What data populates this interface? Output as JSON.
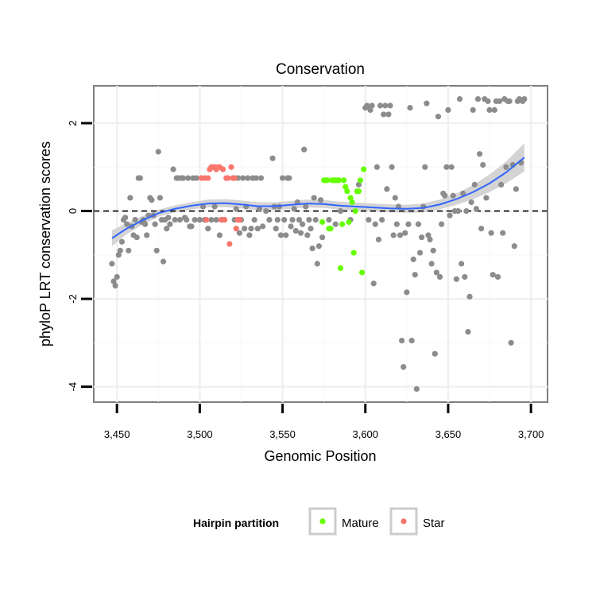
{
  "chart_data": {
    "type": "scatter",
    "title": "Conservation",
    "xlabel": "Genomic Position",
    "ylabel": "phyloP LRT conservation scores",
    "xlim": [
      3436,
      3710
    ],
    "ylim": [
      -4.35,
      2.85
    ],
    "x_ticks": [
      3450,
      3500,
      3550,
      3600,
      3650,
      3700
    ],
    "x_tick_labels": [
      "3,450",
      "3,500",
      "3,550",
      "3,600",
      "3,650",
      "3,700"
    ],
    "y_ticks": [
      -4,
      -2,
      0,
      2
    ],
    "y_tick_labels": [
      "-4",
      "-2",
      "0",
      "2"
    ],
    "grid": true,
    "reference_line": {
      "y": 0,
      "style": "dashed",
      "color": "#000000"
    },
    "legend": {
      "position": "bottom",
      "title": "Hairpin partition",
      "entries": [
        {
          "label": "Mature",
          "color": "#66ff00"
        },
        {
          "label": "Star",
          "color": "#f8766d"
        }
      ]
    },
    "colors": {
      "other": "#8c8c8c",
      "mature": "#66ff00",
      "star": "#f8766d",
      "smooth": "#3366ff",
      "ribbon": "#cccccc"
    },
    "series": [
      {
        "name": "",
        "color": "#8c8c8c",
        "points": [
          [
            3447,
            -1.2
          ],
          [
            3448,
            -1.6
          ],
          [
            3449,
            -1.7
          ],
          [
            3450,
            -1.5
          ],
          [
            3451,
            -1.0
          ],
          [
            3452,
            -0.9
          ],
          [
            3453,
            -0.7
          ],
          [
            3454,
            -0.2
          ],
          [
            3455,
            -0.15
          ],
          [
            3456,
            -0.3
          ],
          [
            3457,
            -0.9
          ],
          [
            3458,
            0.3
          ],
          [
            3459,
            -0.35
          ],
          [
            3460,
            -0.55
          ],
          [
            3461,
            -0.2
          ],
          [
            3462,
            -0.6
          ],
          [
            3463,
            0.75
          ],
          [
            3464,
            0.75
          ],
          [
            3465,
            -0.25
          ],
          [
            3466,
            -0.2
          ],
          [
            3467,
            -0.3
          ],
          [
            3468,
            -0.55
          ],
          [
            3469,
            -0.1
          ],
          [
            3470,
            0.3
          ],
          [
            3471,
            0.25
          ],
          [
            3472,
            -0.1
          ],
          [
            3473,
            -0.3
          ],
          [
            3474,
            -0.9
          ],
          [
            3475,
            1.35
          ],
          [
            3476,
            0.3
          ],
          [
            3477,
            -0.2
          ],
          [
            3478,
            -1.15
          ],
          [
            3479,
            -0.2
          ],
          [
            3480,
            -0.4
          ],
          [
            3481,
            -0.15
          ],
          [
            3482,
            -0.3
          ],
          [
            3484,
            0.95
          ],
          [
            3485,
            -0.2
          ],
          [
            3486,
            0.75
          ],
          [
            3487,
            0.75
          ],
          [
            3488,
            -0.2
          ],
          [
            3489,
            0.75
          ],
          [
            3490,
            0.75
          ],
          [
            3491,
            -0.15
          ],
          [
            3492,
            -0.2
          ],
          [
            3493,
            0.75
          ],
          [
            3494,
            -0.35
          ],
          [
            3495,
            -0.35
          ],
          [
            3496,
            0.75
          ],
          [
            3497,
            -0.2
          ],
          [
            3498,
            0.75
          ],
          [
            3500,
            -0.2
          ],
          [
            3502,
            0.1
          ],
          [
            3503,
            -0.2
          ],
          [
            3505,
            -0.4
          ],
          [
            3507,
            -0.2
          ],
          [
            3509,
            0.1
          ],
          [
            3510,
            -0.2
          ],
          [
            3512,
            -0.55
          ],
          [
            3514,
            -0.2
          ],
          [
            3520,
            0.75
          ],
          [
            3521,
            -0.2
          ],
          [
            3522,
            0.05
          ],
          [
            3523,
            0.75
          ],
          [
            3524,
            -0.5
          ],
          [
            3525,
            -0.2
          ],
          [
            3526,
            0.75
          ],
          [
            3527,
            -0.4
          ],
          [
            3528,
            0.1
          ],
          [
            3529,
            0.75
          ],
          [
            3530,
            -0.55
          ],
          [
            3531,
            -0.4
          ],
          [
            3532,
            0.75
          ],
          [
            3533,
            -0.2
          ],
          [
            3534,
            0.75
          ],
          [
            3535,
            -0.4
          ],
          [
            3536,
            0.05
          ],
          [
            3537,
            0.75
          ],
          [
            3538,
            -0.35
          ],
          [
            3540,
            0.0
          ],
          [
            3542,
            -0.2
          ],
          [
            3544,
            1.2
          ],
          [
            3545,
            0.1
          ],
          [
            3546,
            -0.4
          ],
          [
            3547,
            -0.2
          ],
          [
            3548,
            0.1
          ],
          [
            3549,
            -0.55
          ],
          [
            3550,
            0.75
          ],
          [
            3551,
            -0.2
          ],
          [
            3552,
            -0.55
          ],
          [
            3553,
            0.75
          ],
          [
            3554,
            0.75
          ],
          [
            3555,
            -0.35
          ],
          [
            3556,
            -0.2
          ],
          [
            3557,
            0.05
          ],
          [
            3558,
            -0.45
          ],
          [
            3559,
            0.2
          ],
          [
            3560,
            -0.2
          ],
          [
            3561,
            -0.5
          ],
          [
            3562,
            -0.3
          ],
          [
            3563,
            1.4
          ],
          [
            3564,
            0.1
          ],
          [
            3565,
            -0.55
          ],
          [
            3566,
            -0.2
          ],
          [
            3567,
            -0.4
          ],
          [
            3568,
            -0.85
          ],
          [
            3569,
            0.3
          ],
          [
            3570,
            -0.2
          ],
          [
            3571,
            -1.2
          ],
          [
            3572,
            -0.8
          ],
          [
            3573,
            0.25
          ],
          [
            3574,
            -0.6
          ],
          [
            3578,
            -0.2
          ],
          [
            3582,
            -0.3
          ],
          [
            3585,
            0.0
          ],
          [
            3591,
            -0.2
          ],
          [
            3596,
            0.6
          ],
          [
            3600,
            2.35
          ],
          [
            3601,
            2.4
          ],
          [
            3602,
            -0.2
          ],
          [
            3603,
            2.3
          ],
          [
            3604,
            2.4
          ],
          [
            3605,
            -1.65
          ],
          [
            3606,
            -0.3
          ],
          [
            3607,
            1.0
          ],
          [
            3608,
            -0.65
          ],
          [
            3609,
            2.4
          ],
          [
            3610,
            -0.2
          ],
          [
            3611,
            2.2
          ],
          [
            3612,
            2.4
          ],
          [
            3613,
            0.5
          ],
          [
            3614,
            2.2
          ],
          [
            3615,
            2.4
          ],
          [
            3616,
            1.0
          ],
          [
            3617,
            -0.55
          ],
          [
            3618,
            0.3
          ],
          [
            3619,
            -0.3
          ],
          [
            3620,
            0.1
          ],
          [
            3621,
            -0.55
          ],
          [
            3622,
            -2.95
          ],
          [
            3623,
            -3.55
          ],
          [
            3624,
            -0.5
          ],
          [
            3625,
            -1.85
          ],
          [
            3626,
            -0.3
          ],
          [
            3627,
            2.35
          ],
          [
            3628,
            -2.95
          ],
          [
            3629,
            -1.1
          ],
          [
            3630,
            -1.45
          ],
          [
            3631,
            -4.05
          ],
          [
            3632,
            -0.3
          ],
          [
            3633,
            -0.95
          ],
          [
            3634,
            -0.6
          ],
          [
            3635,
            0.1
          ],
          [
            3636,
            1.0
          ],
          [
            3637,
            2.45
          ],
          [
            3638,
            -0.55
          ],
          [
            3639,
            -0.65
          ],
          [
            3640,
            -1.2
          ],
          [
            3641,
            -0.9
          ],
          [
            3642,
            -3.25
          ],
          [
            3643,
            -1.4
          ],
          [
            3644,
            2.15
          ],
          [
            3645,
            -1.5
          ],
          [
            3646,
            -0.3
          ],
          [
            3647,
            0.4
          ],
          [
            3648,
            0.35
          ],
          [
            3649,
            1.0
          ],
          [
            3650,
            2.3
          ],
          [
            3651,
            -0.1
          ],
          [
            3652,
            1.0
          ],
          [
            3653,
            0.35
          ],
          [
            3654,
            0.0
          ],
          [
            3655,
            -1.55
          ],
          [
            3656,
            0.0
          ],
          [
            3657,
            2.55
          ],
          [
            3658,
            -1.2
          ],
          [
            3659,
            0.4
          ],
          [
            3660,
            -1.5
          ],
          [
            3661,
            0.0
          ],
          [
            3662,
            -2.75
          ],
          [
            3663,
            -1.95
          ],
          [
            3664,
            0.2
          ],
          [
            3665,
            2.3
          ],
          [
            3666,
            0.6
          ],
          [
            3667,
            0.05
          ],
          [
            3668,
            2.55
          ],
          [
            3669,
            1.3
          ],
          [
            3670,
            -0.4
          ],
          [
            3671,
            1.05
          ],
          [
            3672,
            2.55
          ],
          [
            3673,
            0.3
          ],
          [
            3674,
            2.5
          ],
          [
            3675,
            2.3
          ],
          [
            3676,
            -0.5
          ],
          [
            3677,
            -1.45
          ],
          [
            3678,
            2.3
          ],
          [
            3679,
            2.5
          ],
          [
            3680,
            -1.5
          ],
          [
            3681,
            2.5
          ],
          [
            3682,
            0.6
          ],
          [
            3683,
            -0.5
          ],
          [
            3684,
            2.55
          ],
          [
            3685,
            1.0
          ],
          [
            3686,
            2.5
          ],
          [
            3687,
            2.5
          ],
          [
            3688,
            -3.0
          ],
          [
            3689,
            1.05
          ],
          [
            3690,
            -0.8
          ],
          [
            3691,
            0.5
          ],
          [
            3692,
            2.5
          ],
          [
            3693,
            2.55
          ],
          [
            3694,
            1.1
          ],
          [
            3695,
            2.5
          ],
          [
            3696,
            2.55
          ]
        ]
      },
      {
        "name": "Mature",
        "color": "#66ff00",
        "points": [
          [
            3574,
            -0.25
          ],
          [
            3575,
            0.7
          ],
          [
            3576,
            0.7
          ],
          [
            3577,
            0.7
          ],
          [
            3578,
            -0.4
          ],
          [
            3579,
            -0.4
          ],
          [
            3580,
            0.7
          ],
          [
            3581,
            0.7
          ],
          [
            3582,
            0.7
          ],
          [
            3583,
            0.7
          ],
          [
            3584,
            0.7
          ],
          [
            3585,
            -1.3
          ],
          [
            3586,
            -0.3
          ],
          [
            3587,
            0.7
          ],
          [
            3588,
            0.55
          ],
          [
            3589,
            0.45
          ],
          [
            3590,
            -0.25
          ],
          [
            3591,
            0.3
          ],
          [
            3592,
            0.2
          ],
          [
            3593,
            -0.95
          ],
          [
            3594,
            0.0
          ],
          [
            3595,
            0.45
          ],
          [
            3596,
            0.45
          ],
          [
            3597,
            0.7
          ],
          [
            3598,
            -1.4
          ],
          [
            3599,
            0.95
          ]
        ]
      },
      {
        "name": "Star",
        "color": "#f8766d",
        "points": [
          [
            3501,
            0.75
          ],
          [
            3503,
            0.75
          ],
          [
            3504,
            -0.2
          ],
          [
            3505,
            0.75
          ],
          [
            3506,
            0.95
          ],
          [
            3507,
            1.0
          ],
          [
            3508,
            1.0
          ],
          [
            3509,
            1.0
          ],
          [
            3510,
            0.95
          ],
          [
            3511,
            1.0
          ],
          [
            3512,
            1.0
          ],
          [
            3513,
            -0.2
          ],
          [
            3514,
            0.95
          ],
          [
            3515,
            -0.2
          ],
          [
            3516,
            0.75
          ],
          [
            3517,
            0.75
          ],
          [
            3518,
            -0.75
          ],
          [
            3519,
            1.0
          ],
          [
            3520,
            0.75
          ],
          [
            3521,
            0.75
          ],
          [
            3522,
            -0.4
          ],
          [
            3523,
            -0.2
          ],
          [
            3524,
            -0.2
          ]
        ]
      }
    ],
    "smooth": {
      "color": "#3366ff",
      "x": [
        3447,
        3455,
        3465,
        3475,
        3485,
        3495,
        3505,
        3515,
        3525,
        3535,
        3545,
        3555,
        3565,
        3575,
        3585,
        3595,
        3605,
        3615,
        3625,
        3635,
        3645,
        3655,
        3665,
        3675,
        3685,
        3696
      ],
      "y": [
        -0.62,
        -0.42,
        -0.22,
        -0.05,
        0.05,
        0.12,
        0.17,
        0.18,
        0.15,
        0.11,
        0.11,
        0.14,
        0.17,
        0.16,
        0.12,
        0.1,
        0.08,
        0.06,
        0.05,
        0.07,
        0.15,
        0.27,
        0.43,
        0.63,
        0.88,
        1.22
      ],
      "band": [
        0.18,
        0.13,
        0.1,
        0.08,
        0.08,
        0.08,
        0.09,
        0.09,
        0.09,
        0.09,
        0.09,
        0.09,
        0.09,
        0.09,
        0.09,
        0.09,
        0.09,
        0.09,
        0.09,
        0.1,
        0.11,
        0.13,
        0.16,
        0.2,
        0.25,
        0.32
      ]
    }
  }
}
